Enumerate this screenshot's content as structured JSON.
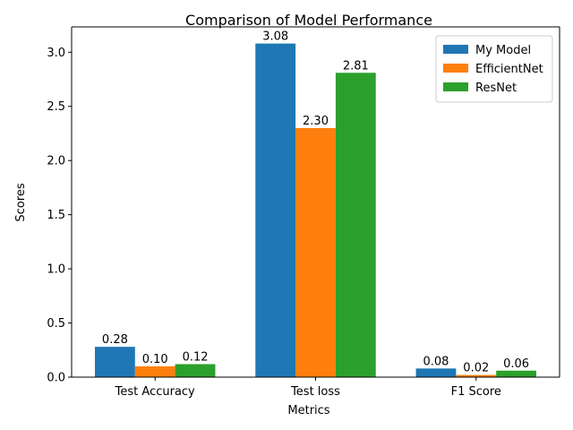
{
  "chart_data": {
    "type": "bar",
    "title": "Comparison of Model Performance",
    "xlabel": "Metrics",
    "ylabel": "Scores",
    "categories": [
      "Test Accuracy",
      "Test loss",
      "F1 Score"
    ],
    "series": [
      {
        "name": "My Model",
        "values": [
          0.28,
          3.08,
          0.08
        ],
        "labels": [
          "0.28",
          "3.08",
          "0.08"
        ],
        "color": "#1f77b4"
      },
      {
        "name": "EfficientNet",
        "values": [
          0.1,
          2.3,
          0.02
        ],
        "labels": [
          "0.10",
          "2.30",
          "0.02"
        ],
        "color": "#ff7f0e"
      },
      {
        "name": "ResNet",
        "values": [
          0.12,
          2.81,
          0.06
        ],
        "labels": [
          "0.12",
          "2.81",
          "0.06"
        ],
        "color": "#2ca02c"
      }
    ],
    "ylim": [
      0,
      3.234
    ],
    "yticks": [
      0.0,
      0.5,
      1.0,
      1.5,
      2.0,
      2.5,
      3.0
    ],
    "ytick_labels": [
      "0.0",
      "0.5",
      "1.0",
      "1.5",
      "2.0",
      "2.5",
      "3.0"
    ],
    "grid": false,
    "legend_position": "top-right"
  }
}
